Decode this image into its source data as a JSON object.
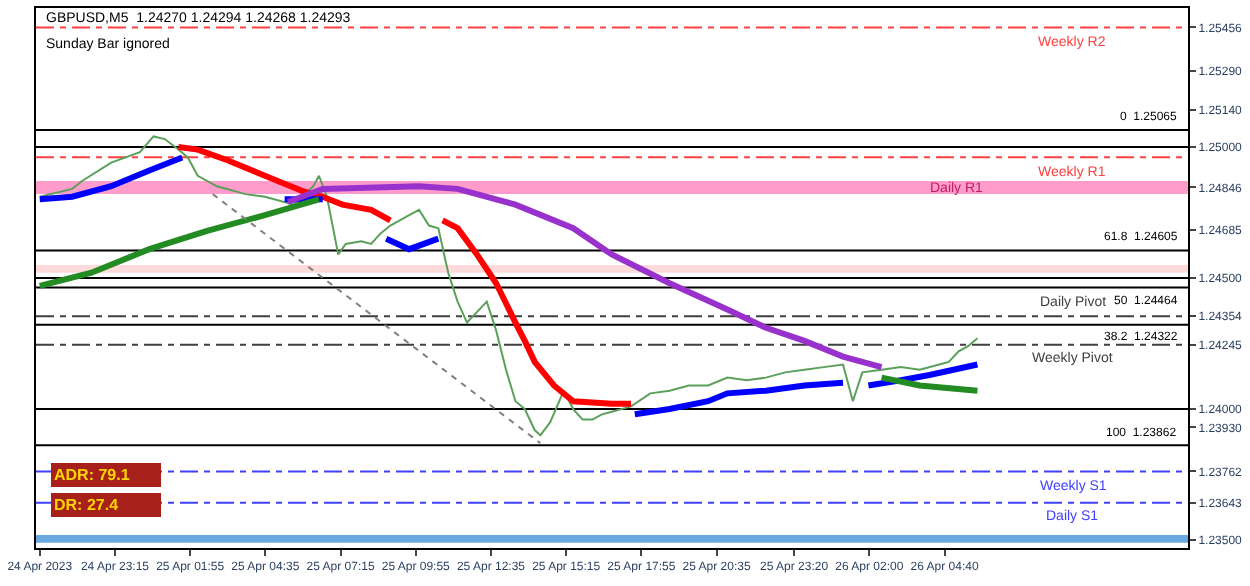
{
  "chart_data": {
    "type": "line",
    "xlim": [
      "2023-04-24T20:27",
      "2023-04-26T13:18"
    ],
    "ylim": [
      1.2347,
      1.2553
    ],
    "xticks": [
      {
        "value": "2023-04-24T20:35",
        "label": "24 Apr 2023"
      },
      {
        "value": "2023-04-24T23:15",
        "label": "24 Apr 23:15"
      },
      {
        "value": "2023-04-25T01:55",
        "label": "25 Apr 01:55"
      },
      {
        "value": "2023-04-25T04:35",
        "label": "25 Apr 04:35"
      },
      {
        "value": "2023-04-25T07:15",
        "label": "25 Apr 07:15"
      },
      {
        "value": "2023-04-25T09:55",
        "label": "25 Apr 09:55"
      },
      {
        "value": "2023-04-25T12:35",
        "label": "25 Apr 12:35"
      },
      {
        "value": "2023-04-25T15:15",
        "label": "25 Apr 15:15"
      },
      {
        "value": "2023-04-25T17:55",
        "label": "25 Apr 17:55"
      },
      {
        "value": "2023-04-25T20:35",
        "label": "25 Apr 20:35"
      },
      {
        "value": "2023-04-25T23:20",
        "label": "25 Apr 23:20"
      },
      {
        "value": "2023-04-26T02:00",
        "label": "26 Apr 02:00"
      },
      {
        "value": "2023-04-26T04:40",
        "label": "26 Apr 04:40"
      }
    ],
    "yticks": [
      {
        "value": 1.25456,
        "label": "1.25456"
      },
      {
        "value": 1.2529,
        "label": "1.25290"
      },
      {
        "value": 1.2514,
        "label": "1.25140"
      },
      {
        "value": 1.25,
        "label": "1.25000"
      },
      {
        "value": 1.24846,
        "label": "1.24846"
      },
      {
        "value": 1.24685,
        "label": "1.24685"
      },
      {
        "value": 1.245,
        "label": "1.24500"
      },
      {
        "value": 1.24354,
        "label": "1.24354"
      },
      {
        "value": 1.24245,
        "label": "1.24245"
      },
      {
        "value": 1.24,
        "label": "1.24000"
      },
      {
        "value": 1.2393,
        "label": "1.23930"
      },
      {
        "value": 1.23762,
        "label": "1.23762"
      },
      {
        "value": 1.23643,
        "label": "1.23643"
      },
      {
        "value": 1.235,
        "label": "1.23500"
      }
    ],
    "grid": false,
    "series": [
      {
        "color": "#5aa05a",
        "x": [
          "2023-04-24T20:35",
          "2023-04-24T21:44",
          "2023-04-24T22:05",
          "2023-04-24T23:07",
          "2023-04-25T00:08",
          "2023-04-25T00:37",
          "2023-04-25T01:01",
          "2023-04-25T01:30",
          "2023-04-25T01:50",
          "2023-04-25T02:11",
          "2023-04-25T02:52",
          "2023-04-25T03:53",
          "2023-04-25T04:34",
          "2023-04-25T05:36",
          "2023-04-25T06:17",
          "2023-04-25T06:29",
          "2023-04-25T06:46",
          "2023-04-25T06:58",
          "2023-04-25T07:10",
          "2023-04-25T07:26",
          "2023-04-25T07:59",
          "2023-04-25T08:20",
          "2023-04-25T08:40",
          "2023-04-25T09:01",
          "2023-04-25T09:41",
          "2023-04-25T10:02",
          "2023-04-25T10:23",
          "2023-04-25T10:43",
          "2023-04-25T11:04",
          "2023-04-25T11:24",
          "2023-04-25T11:44",
          "2023-04-25T12:05",
          "2023-04-25T12:26",
          "2023-04-25T12:46",
          "2023-04-25T13:07",
          "2023-04-25T13:27",
          "2023-04-25T13:47",
          "2023-04-25T14:08",
          "2023-04-25T14:20",
          "2023-04-25T14:41",
          "2023-04-25T15:10",
          "2023-04-25T15:30",
          "2023-04-25T15:50",
          "2023-04-25T16:11",
          "2023-04-25T16:31",
          "2023-04-25T16:52",
          "2023-04-25T17:33",
          "2023-04-25T18:14",
          "2023-04-25T18:55",
          "2023-04-25T19:36",
          "2023-04-25T20:17",
          "2023-04-25T20:58",
          "2023-04-25T21:39",
          "2023-04-25T22:20",
          "2023-04-25T23:01",
          "2023-04-25T23:42",
          "2023-04-26T00:23",
          "2023-04-26T01:04",
          "2023-04-26T01:25",
          "2023-04-26T01:45",
          "2023-04-26T02:26",
          "2023-04-26T03:07",
          "2023-04-26T03:47",
          "2023-04-26T04:29",
          "2023-04-26T04:49",
          "2023-04-26T05:10",
          "2023-04-26T05:30",
          "2023-04-26T05:50"
        ],
        "values": [
          1.2481,
          1.2484,
          1.2487,
          1.2494,
          1.2498,
          1.2504,
          1.2503,
          1.2499,
          1.2496,
          1.2489,
          1.2485,
          1.2482,
          1.2481,
          1.2478,
          1.2485,
          1.2489,
          1.2481,
          1.247,
          1.2459,
          1.2463,
          1.2464,
          1.2463,
          1.2467,
          1.247,
          1.2474,
          1.2476,
          1.247,
          1.2469,
          1.2452,
          1.2441,
          1.2433,
          1.2437,
          1.2441,
          1.243,
          1.2415,
          1.2403,
          1.24,
          1.2392,
          1.239,
          1.2395,
          1.2407,
          1.24,
          1.2396,
          1.2396,
          1.2398,
          1.2399,
          1.2401,
          1.2406,
          1.2407,
          1.2409,
          1.2409,
          1.2412,
          1.2411,
          1.2412,
          1.2414,
          1.2415,
          1.2416,
          1.2417,
          1.2403,
          1.2414,
          1.2415,
          1.2416,
          1.2415,
          1.2417,
          1.2418,
          1.2422,
          1.2424,
          1.2427
        ]
      },
      {
        "color": "#ff0000",
        "x": [
          "2023-04-25T01:30",
          "2023-04-25T02:11",
          "2023-04-25T03:13",
          "2023-04-25T04:34",
          "2023-04-25T05:56",
          "2023-04-25T06:37",
          "2023-04-25T07:19",
          "2023-04-25T08:20",
          "2023-04-25T09:01",
          "2023-04-25T09:30",
          "2023-04-25T10:52",
          "2023-04-25T11:24",
          "2023-04-25T12:05",
          "2023-04-25T12:46",
          "2023-04-25T13:27",
          "2023-04-25T13:47",
          "2023-04-25T14:08",
          "2023-04-25T14:49",
          "2023-04-25T15:30",
          "2023-04-25T16:52",
          "2023-04-25T17:33"
        ],
        "values": [
          1.25,
          1.2499,
          1.2495,
          1.2489,
          1.2483,
          1.2481,
          1.2478,
          1.2476,
          1.2472,
          null,
          1.2472,
          1.2469,
          1.2459,
          1.2448,
          1.2433,
          1.2426,
          1.2418,
          1.2409,
          1.2403,
          1.2402,
          1.2402
        ]
      },
      {
        "color": "#0000ff",
        "x": [
          "2023-04-24T20:35",
          "2023-04-24T21:44",
          "2023-04-24T23:07",
          "2023-04-25T00:28",
          "2023-04-25T01:38",
          "2023-04-25T03:30",
          "2023-04-25T05:16",
          "2023-04-25T06:37",
          "2023-04-25T07:30",
          "2023-04-25T08:52",
          "2023-04-25T09:41",
          "2023-04-25T10:43",
          "2023-04-25T14:00",
          "2023-04-25T17:41",
          "2023-04-25T18:55",
          "2023-04-25T20:17",
          "2023-04-25T20:58",
          "2023-04-25T22:20",
          "2023-04-25T23:42",
          "2023-04-26T01:04",
          "2023-04-26T01:30",
          "2023-04-26T01:58",
          "2023-04-26T03:07",
          "2023-04-26T04:08",
          "2023-04-26T05:50"
        ],
        "values": [
          1.248,
          1.2481,
          1.2485,
          1.2491,
          1.2496,
          null,
          1.248,
          1.248,
          null,
          1.2465,
          1.2461,
          1.2465,
          null,
          1.2398,
          1.24,
          1.2403,
          1.2406,
          1.2407,
          1.2409,
          1.241,
          null,
          1.2409,
          1.2411,
          1.2413,
          1.2417
        ]
      },
      {
        "color": "#9932cc",
        "x": [
          "2023-04-25T05:23",
          "2023-04-25T06:37",
          "2023-04-25T10:02",
          "2023-04-25T11:24",
          "2023-04-25T13:27",
          "2023-04-25T15:30",
          "2023-04-25T16:52",
          "2023-04-25T18:55",
          "2023-04-25T20:58",
          "2023-04-25T22:20",
          "2023-04-25T23:42",
          "2023-04-26T01:04",
          "2023-04-26T02:26"
        ],
        "values": [
          1.2479,
          1.2484,
          1.2485,
          1.2484,
          1.2478,
          1.2469,
          1.2459,
          1.2448,
          1.2438,
          1.2431,
          1.2426,
          1.242,
          1.2416
        ]
      },
      {
        "color": "#228b22",
        "x": [
          "2023-04-24T20:35",
          "2023-04-24T22:25",
          "2023-04-25T00:28",
          "2023-04-25T02:31",
          "2023-04-25T04:34",
          "2023-04-25T06:29",
          "2023-04-25T16:00",
          "2023-04-26T02:26",
          "2023-04-26T03:47",
          "2023-04-26T05:50"
        ],
        "values": [
          1.2447,
          1.2452,
          1.2461,
          1.2468,
          1.2474,
          1.248,
          null,
          1.2412,
          1.2409,
          1.2407
        ]
      },
      {
        "color": "#808080",
        "line_style": "dotted",
        "x": [
          "2023-04-25T02:43",
          "2023-04-25T14:20"
        ],
        "values": [
          1.2482,
          1.2387
        ]
      }
    ],
    "ref_lines": [
      {
        "axis": "y",
        "value": 1.25456,
        "label": "Weekly R2",
        "color": "#ff4040",
        "line_style": "dashed"
      },
      {
        "axis": "y",
        "value": 1.25065,
        "label": "0  1.25065",
        "color": "#000000",
        "line_style": "solid"
      },
      {
        "axis": "y",
        "value": 1.25,
        "color": "#000000",
        "line_style": "solid"
      },
      {
        "axis": "y",
        "value": 1.24961,
        "label": "Weekly R1",
        "color": "#ff4040",
        "line_style": "dashed"
      },
      {
        "axis": "y",
        "value": 1.24605,
        "label": "61.8  1.24605",
        "color": "#000000",
        "line_style": "solid"
      },
      {
        "axis": "y",
        "value": 1.245,
        "color": "#000000",
        "line_style": "solid"
      },
      {
        "axis": "y",
        "value": 1.24464,
        "label": "50  1.24464",
        "color": "#000000",
        "line_style": "solid"
      },
      {
        "axis": "y",
        "value": 1.24354,
        "label": "Daily Pivot",
        "color": "#404040",
        "line_style": "dashed"
      },
      {
        "axis": "y",
        "value": 1.24322,
        "label": "38.2  1.24322",
        "color": "#000000",
        "line_style": "solid"
      },
      {
        "axis": "y",
        "value": 1.24245,
        "label": "Weekly Pivot",
        "color": "#404040",
        "line_style": "dashed"
      },
      {
        "axis": "y",
        "value": 1.24,
        "color": "#000000",
        "line_style": "solid"
      },
      {
        "axis": "y",
        "value": 1.23862,
        "label": "100  1.23862",
        "color": "#000000",
        "line_style": "solid"
      },
      {
        "axis": "y",
        "value": 1.23762,
        "label": "Weekly S1",
        "color": "#4040ff",
        "line_style": "dashed"
      },
      {
        "axis": "y",
        "value": 1.23643,
        "label": "Daily S1",
        "color": "#4040ff",
        "line_style": "dashed"
      }
    ],
    "bands": [
      {
        "axis": "y",
        "from": 1.2482,
        "to": 1.2487,
        "label": "Daily R1",
        "color": "#ff9ccc"
      },
      {
        "axis": "y",
        "from": 1.2452,
        "to": 1.2455,
        "color": "#ffdada"
      },
      {
        "axis": "y",
        "from": 1.2349,
        "to": 1.2352,
        "color": "#6aa8e0"
      }
    ],
    "annotations": [
      "GBPUSD,M5  1.24270 1.24294 1.24268 1.24293",
      "Sunday Bar ignored",
      "ADR: 79.1",
      "DR: 27.4"
    ]
  }
}
